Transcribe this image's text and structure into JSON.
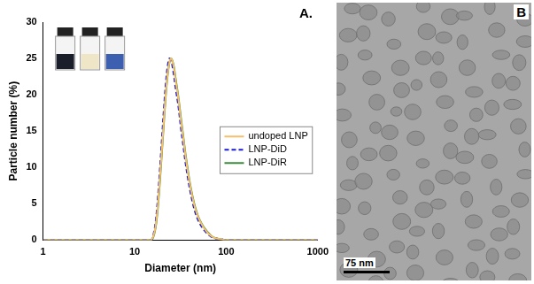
{
  "chart_data": {
    "type": "line",
    "panel_label": "A.",
    "x_label": "Diameter (nm)",
    "y_label": "Particle number (%)",
    "log": "x",
    "grid": false,
    "legend": "right",
    "xlim": [
      1,
      1000
    ],
    "xticks": [
      1,
      10,
      100,
      1000
    ],
    "ylim": [
      0,
      30
    ],
    "yticks": [
      0,
      5,
      10,
      15,
      20,
      25,
      30
    ],
    "x": [
      1,
      10,
      15,
      16,
      17,
      18,
      19,
      20,
      21,
      22,
      23,
      24,
      25,
      26,
      27,
      28,
      30,
      32,
      34,
      36,
      38,
      40,
      43,
      46,
      50,
      55,
      60,
      65,
      70,
      80,
      90,
      100,
      1000
    ],
    "series": [
      {
        "name": "undoped LNP",
        "color": "#f5c06a",
        "line_style": "solid",
        "values": [
          0,
          0,
          0,
          0.5,
          2,
          5,
          9,
          13,
          17,
          20.5,
          23,
          24.5,
          25,
          24.5,
          23.5,
          22,
          19.5,
          16.5,
          14,
          11.5,
          9.5,
          7.8,
          5.8,
          4.3,
          3,
          2,
          1.3,
          0.8,
          0.5,
          0.2,
          0.1,
          0,
          0
        ]
      },
      {
        "name": "LNP-DiD",
        "color": "#1c1cd6",
        "line_style": "dashed",
        "values": [
          0,
          0,
          0,
          0.7,
          2.6,
          6,
          10.2,
          14.5,
          18.5,
          21.8,
          24,
          25,
          24.8,
          23.8,
          22.5,
          21,
          18.5,
          15.5,
          13,
          10.6,
          8.7,
          7.1,
          5.2,
          3.8,
          2.6,
          1.7,
          1.1,
          0.7,
          0.4,
          0.2,
          0.1,
          0,
          0
        ]
      },
      {
        "name": "LNP-DiR",
        "color": "#3a8a3a",
        "line_style": "solid",
        "values": [
          0,
          0,
          0,
          0.4,
          1.8,
          4.6,
          8.5,
          12.6,
          16.6,
          20.2,
          22.8,
          24.4,
          25,
          24.6,
          23.7,
          22.3,
          19.8,
          16.9,
          14.3,
          11.8,
          9.8,
          8,
          6,
          4.5,
          3.1,
          2.1,
          1.4,
          0.9,
          0.5,
          0.2,
          0.1,
          0,
          0
        ]
      }
    ]
  },
  "image": {
    "panel_label": "B",
    "scale_bar": "75 nm"
  }
}
